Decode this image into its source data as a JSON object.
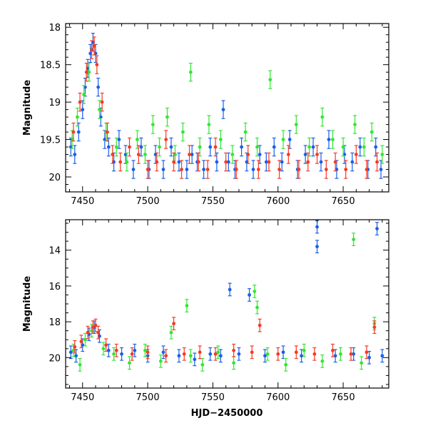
{
  "colors": {
    "blue": "#1a5fe8",
    "green": "#33e633",
    "red": "#f53a24"
  },
  "chart_data": [
    {
      "type": "scatter",
      "panel": "top",
      "xlabel": "HJD−2450000",
      "ylabel": "Magnitude",
      "xlim": [
        7437,
        7685
      ],
      "ylim": [
        20.2,
        17.95
      ],
      "y_inverted": true,
      "x_ticks": [
        7450,
        7500,
        7550,
        7600,
        7650
      ],
      "y_ticks": [
        18,
        18.5,
        19,
        19.5,
        20
      ],
      "x_tick_labels": [
        "7450",
        "7500",
        "7550",
        "7600",
        "7650"
      ],
      "y_tick_labels": [
        "18",
        "18.5",
        "19",
        "19.5",
        "20"
      ],
      "error_bars": true,
      "series": [
        {
          "color": "blue",
          "x": [
            7441,
            7444,
            7447,
            7450,
            7452,
            7454,
            7456,
            7458,
            7460,
            7462,
            7464,
            7467,
            7470,
            7474,
            7478,
            7483,
            7489,
            7495,
            7501,
            7506,
            7512,
            7518,
            7524,
            7530,
            7534,
            7538,
            7543,
            7548,
            7553,
            7558,
            7562,
            7567,
            7572,
            7576,
            7581,
            7586,
            7591,
            7597,
            7603,
            7609,
            7615,
            7621,
            7627,
            7633,
            7639,
            7645,
            7651,
            7657,
            7663,
            7669,
            7675,
            7679
          ],
          "y": [
            19.6,
            19.7,
            19.4,
            19.1,
            18.8,
            18.55,
            18.35,
            18.2,
            18.35,
            18.8,
            19.2,
            19.5,
            19.6,
            19.8,
            19.5,
            19.7,
            19.9,
            19.6,
            19.9,
            19.7,
            19.9,
            19.6,
            19.8,
            19.9,
            19.7,
            19.8,
            19.9,
            19.6,
            19.8,
            19.1,
            19.8,
            19.9,
            19.6,
            19.8,
            19.9,
            19.7,
            19.8,
            19.6,
            19.8,
            19.5,
            19.9,
            19.7,
            19.6,
            19.8,
            19.5,
            19.9,
            19.7,
            19.8,
            19.6,
            19.9,
            19.6,
            19.9
          ]
        },
        {
          "color": "green",
          "x": [
            7442,
            7446,
            7451,
            7455,
            7463,
            7468,
            7476,
            7484,
            7492,
            7498,
            7504,
            7509,
            7515,
            7521,
            7527,
            7533,
            7540,
            7547,
            7556,
            7565,
            7575,
            7584,
            7594,
            7604,
            7614,
            7624,
            7634,
            7642,
            7650,
            7659,
            7666,
            7672,
            7680
          ],
          "y": [
            19.5,
            19.2,
            18.9,
            18.6,
            19.1,
            19.4,
            19.6,
            19.8,
            19.5,
            19.7,
            19.3,
            19.6,
            19.2,
            19.7,
            19.4,
            18.6,
            19.6,
            19.3,
            19.5,
            19.7,
            19.4,
            19.6,
            18.7,
            19.5,
            19.3,
            19.6,
            19.2,
            19.5,
            19.6,
            19.3,
            19.6,
            19.4,
            19.7
          ]
        },
        {
          "color": "red",
          "x": [
            7443,
            7448,
            7453,
            7457,
            7459,
            7461,
            7465,
            7469,
            7473,
            7479,
            7486,
            7493,
            7500,
            7507,
            7514,
            7520,
            7526,
            7532,
            7539,
            7546,
            7552,
            7560,
            7568,
            7577,
            7585,
            7593,
            7601,
            7608,
            7616,
            7623,
            7630,
            7637,
            7644,
            7652,
            7660,
            7668,
            7676
          ],
          "y": [
            19.4,
            19.0,
            18.6,
            18.3,
            18.25,
            18.5,
            19.0,
            19.4,
            19.7,
            19.8,
            19.6,
            19.7,
            19.9,
            19.8,
            19.5,
            19.8,
            19.9,
            19.7,
            19.8,
            19.9,
            19.6,
            19.8,
            19.9,
            19.7,
            19.9,
            19.8,
            19.9,
            19.7,
            19.9,
            19.8,
            19.7,
            19.9,
            19.8,
            19.9,
            19.7,
            19.9,
            19.8
          ]
        }
      ]
    },
    {
      "type": "scatter",
      "panel": "bottom",
      "xlabel": "HJD−2450000",
      "ylabel": "Magnitude",
      "xlim": [
        7437,
        7685
      ],
      "ylim": [
        21.7,
        12.3
      ],
      "y_inverted": true,
      "x_ticks": [
        7450,
        7500,
        7550,
        7600,
        7650
      ],
      "y_ticks": [
        14,
        16,
        18,
        20
      ],
      "x_tick_labels": [
        "7450",
        "7500",
        "7550",
        "7600",
        "7650"
      ],
      "y_tick_labels": [
        "14",
        "16",
        "18",
        "20"
      ],
      "error_bars": true,
      "series": [
        {
          "color": "blue",
          "x": [
            7441,
            7445,
            7450,
            7455,
            7459,
            7463,
            7470,
            7480,
            7490,
            7500,
            7512,
            7524,
            7536,
            7548,
            7556,
            7563,
            7570,
            7578,
            7590,
            7604,
            7618,
            7630,
            7630,
            7644,
            7658,
            7670,
            7676,
            7680
          ],
          "y": [
            19.7,
            19.9,
            19.3,
            18.7,
            18.3,
            18.8,
            19.6,
            19.8,
            19.6,
            19.9,
            19.7,
            19.9,
            20.1,
            19.8,
            19.9,
            16.2,
            19.8,
            16.5,
            19.9,
            19.7,
            19.9,
            12.7,
            13.8,
            19.9,
            19.8,
            20.0,
            12.8,
            19.9
          ]
        },
        {
          "color": "green",
          "x": [
            7443,
            7448,
            7452,
            7457,
            7466,
            7474,
            7486,
            7498,
            7510,
            7518,
            7530,
            7533,
            7542,
            7554,
            7566,
            7582,
            7584,
            7592,
            7606,
            7620,
            7634,
            7648,
            7658,
            7664,
            7674
          ],
          "y": [
            19.6,
            20.4,
            19.0,
            18.5,
            19.5,
            19.8,
            20.3,
            19.6,
            20.2,
            18.6,
            17.1,
            19.9,
            20.4,
            19.7,
            20.3,
            16.3,
            17.2,
            19.8,
            20.4,
            19.6,
            20.2,
            19.8,
            13.4,
            20.3,
            18.1
          ]
        },
        {
          "color": "red",
          "x": [
            7444,
            7449,
            7454,
            7458,
            7460,
            7462,
            7468,
            7476,
            7488,
            7500,
            7514,
            7520,
            7528,
            7540,
            7552,
            7566,
            7580,
            7586,
            7600,
            7614,
            7628,
            7642,
            7656,
            7668,
            7674
          ],
          "y": [
            19.4,
            19.1,
            18.6,
            18.3,
            18.2,
            18.6,
            19.3,
            19.6,
            19.8,
            19.7,
            19.9,
            18.1,
            19.8,
            19.7,
            19.8,
            19.6,
            19.7,
            18.2,
            19.8,
            19.7,
            19.8,
            19.6,
            19.8,
            19.7,
            18.3
          ]
        }
      ]
    }
  ]
}
